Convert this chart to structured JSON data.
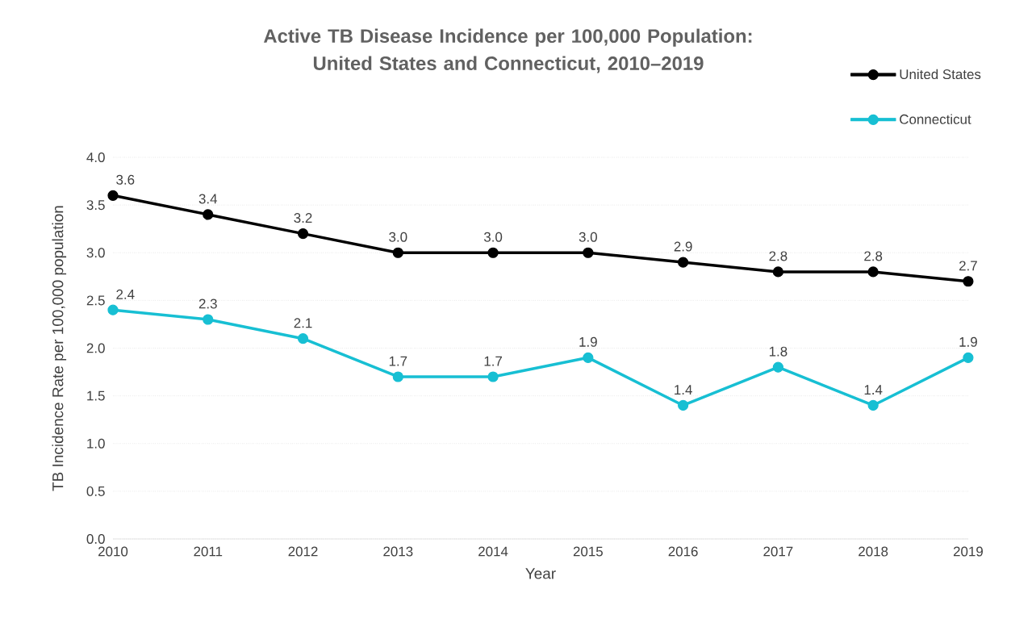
{
  "chart_data": {
    "type": "line",
    "title": "Active TB Disease Incidence per 100,000 Population: United States and Connecticut, 2010–2019",
    "xlabel": "Year",
    "ylabel": "TB Incidence Rate per 100,000 population",
    "categories": [
      "2010",
      "2011",
      "2012",
      "2013",
      "2014",
      "2015",
      "2016",
      "2017",
      "2018",
      "2019"
    ],
    "series": [
      {
        "name": "United States",
        "color": "#000000",
        "values": [
          3.6,
          3.4,
          3.2,
          3.0,
          3.0,
          3.0,
          2.9,
          2.8,
          2.8,
          2.7
        ],
        "value_labels": [
          "3.6",
          "3.4",
          "3.2",
          "3.0",
          "3.0",
          "3.0",
          "2.9",
          "2.8",
          "2.8",
          "2.7"
        ]
      },
      {
        "name": "Connecticut",
        "color": "#17bfd3",
        "values": [
          2.4,
          2.3,
          2.1,
          1.7,
          1.7,
          1.9,
          1.4,
          1.8,
          1.4,
          1.9
        ],
        "value_labels": [
          "2.4",
          "2.3",
          "2.1",
          "1.7",
          "1.7",
          "1.9",
          "1.4",
          "1.8",
          "1.4",
          "1.9"
        ]
      }
    ],
    "ylim": [
      0,
      4.0
    ],
    "yticks": [
      {
        "value": 0,
        "label": "0.0"
      },
      {
        "value": 0.5,
        "label": "0.5"
      },
      {
        "value": 1,
        "label": "1.0"
      },
      {
        "value": 1.5,
        "label": "1.5"
      },
      {
        "value": 2,
        "label": "2.0"
      },
      {
        "value": 2.5,
        "label": "2.5"
      },
      {
        "value": 3,
        "label": "3.0"
      },
      {
        "value": 3.5,
        "label": "3.5"
      },
      {
        "value": 4,
        "label": "4.0"
      }
    ],
    "grid": "y",
    "legend": "top right",
    "marker": "circle",
    "line_style": "solid"
  }
}
